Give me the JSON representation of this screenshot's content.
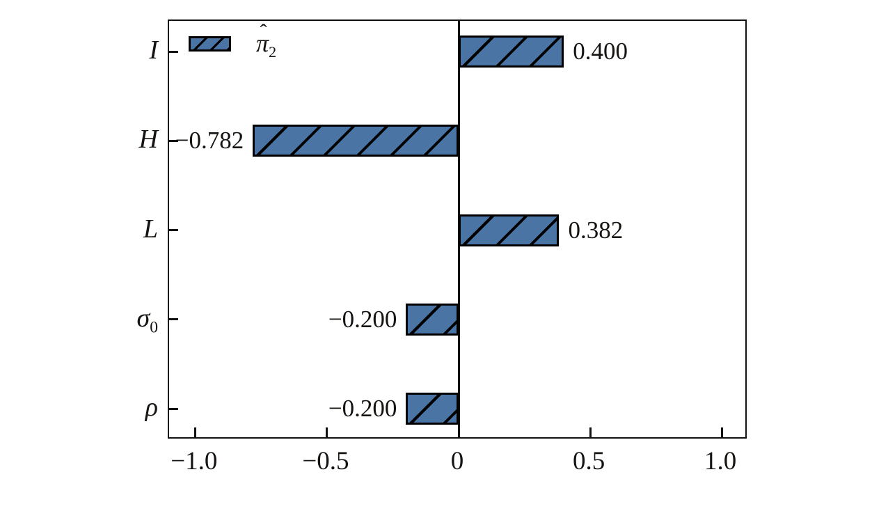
{
  "chart_data": {
    "type": "bar",
    "orientation": "horizontal",
    "title": "",
    "xlabel": "",
    "ylabel": "",
    "categories": [
      {
        "base": "I",
        "sub": ""
      },
      {
        "base": "H",
        "sub": ""
      },
      {
        "base": "L",
        "sub": ""
      },
      {
        "base": "σ",
        "sub": "0"
      },
      {
        "base": "ρ",
        "sub": ""
      }
    ],
    "series": [
      {
        "name": "π̂2",
        "values": [
          0.4,
          -0.782,
          0.382,
          -0.2,
          -0.2
        ],
        "value_labels": [
          "0.400",
          "−0.782",
          "0.382",
          "−0.200",
          "−0.200"
        ],
        "color": "#4a74a4",
        "hatch": "/"
      }
    ],
    "xlim": [
      -1.1,
      1.1
    ],
    "x_ticks": [
      -1.0,
      -0.5,
      0,
      0.5,
      1.0
    ],
    "x_tick_labels": [
      "−1.0",
      "−0.5",
      "0",
      "0.5",
      "1.0"
    ],
    "legend": {
      "position": "upper-left",
      "label_base": "π",
      "label_accent": "ˆ",
      "label_sub": "2"
    },
    "grid": false,
    "zero_line": true,
    "axis_color": "#111111",
    "text_color": "#161311",
    "background": "#ffffff"
  }
}
